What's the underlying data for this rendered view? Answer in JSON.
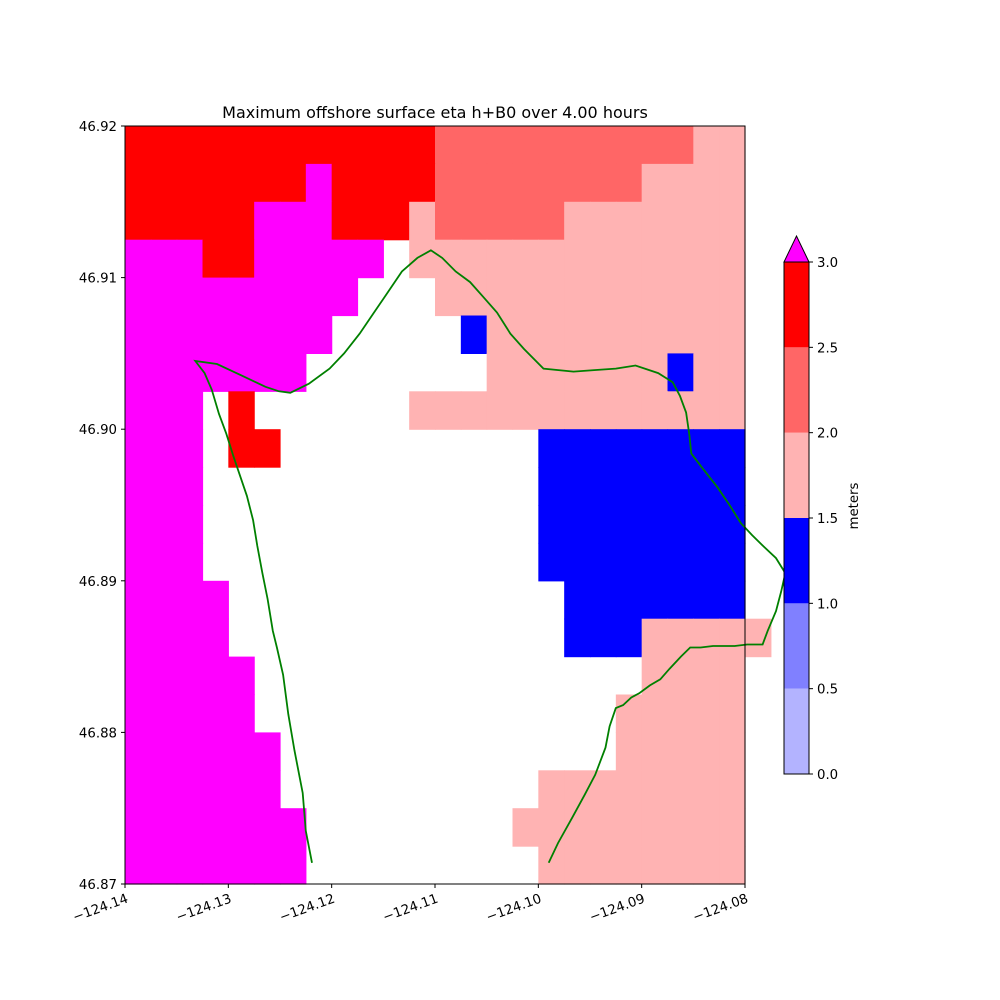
{
  "chart_data": {
    "type": "heatmap",
    "title": "Maximum offshore surface eta h+B0 over 4.00 hours",
    "xlim": [
      -124.14,
      -124.08
    ],
    "ylim": [
      46.87,
      46.92
    ],
    "x_ticks": [
      -124.14,
      -124.13,
      -124.12,
      -124.11,
      -124.1,
      -124.09,
      -124.08
    ],
    "x_tick_labels": [
      "−124.14",
      "−124.13",
      "−124.12",
      "−124.11",
      "−124.10",
      "−124.09",
      "−124.08"
    ],
    "y_ticks": [
      46.87,
      46.88,
      46.89,
      46.9,
      46.91,
      46.92
    ],
    "y_tick_labels": [
      "46.87",
      "46.88",
      "46.89",
      "46.90",
      "46.91",
      "46.92"
    ],
    "grid": false,
    "colorbar": {
      "label": "meters",
      "placement": "right",
      "ticks": [
        0.0,
        0.5,
        1.0,
        1.5,
        2.0,
        2.5,
        3.0
      ],
      "tick_labels": [
        "0.0",
        "0.5",
        "1.0",
        "1.5",
        "2.0",
        "2.5",
        "3.0"
      ],
      "levels": [
        {
          "range": [
            0.0,
            0.5
          ],
          "color": "#b3b3ff"
        },
        {
          "range": [
            0.5,
            1.0
          ],
          "color": "#8080ff"
        },
        {
          "range": [
            1.0,
            1.5
          ],
          "color": "#0000ff"
        },
        {
          "range": [
            1.5,
            2.0
          ],
          "color": "#ffb3b3"
        },
        {
          "range": [
            2.0,
            2.5
          ],
          "color": "#ff6666"
        },
        {
          "range": [
            2.5,
            3.0
          ],
          "color": "#ff0000"
        }
      ],
      "extend_max_color": "#ff00ff"
    },
    "grid_cells": {
      "nx": 24,
      "ny": 20,
      "legend": {
        ".": "no data",
        "0": "0.0-0.5",
        "1": "0.5-1.0",
        "2": "1.0-1.5",
        "3": "1.5-2.0",
        "4": "2.0-2.5",
        "5": "2.5-3.0",
        "M": ">3.0"
      },
      "rows_top_to_bottom": [
        "RRRRRRRRRRRRPPPPPPPPPPLL",
        "RRRRRRRMRRRRPPPPPPPPLLLL",
        "RRRRRMMMRRRLPPPPPLLLLLLL",
        "MMMRRMMMMM.LLLLLLLLLLLLL",
        "MMMMMMMMM...LLLLLLLLLLLL",
        "MMMMMMMM.....BLLLLLLLLLL",
        "MMMMMMM.......LLLLLLLBLL",
        "MMM.R......LLLLLLLLLLLLL",
        "MMM.RR..........BBBBBBBB",
        "MMM.............BBBBBBBB",
        "MMM.............BBBBBBBB",
        "MMM.............BBBBBBBB",
        "MMMM.............BBBBBBB",
        "MMMM.............BBBLLLLL",
        "MMMMM...............LLLL",
        "MMMMM..............LLLLL",
        "MMMMMM.............LLLLL",
        "MMMMMM..........LLLLLLLL",
        "MMMMMMM........LLLLLLLLL",
        "MMMMMMM.........LLLLLLLL"
      ]
    },
    "coastline": {
      "color": "#008000",
      "points": [
        [
          -124.1219,
          46.8714
        ],
        [
          -124.1225,
          46.8735
        ],
        [
          -124.1228,
          46.876
        ],
        [
          -124.1236,
          46.8788
        ],
        [
          -124.1242,
          46.8812
        ],
        [
          -124.1247,
          46.8838
        ],
        [
          -124.1253,
          46.8856
        ],
        [
          -124.1257,
          46.8867
        ],
        [
          -124.1262,
          46.8888
        ],
        [
          -124.1267,
          46.8905
        ],
        [
          -124.1272,
          46.8923
        ],
        [
          -124.1276,
          46.894
        ],
        [
          -124.1282,
          46.8956
        ],
        [
          -124.1288,
          46.8968
        ],
        [
          -124.1295,
          46.8982
        ],
        [
          -124.1302,
          46.8997
        ],
        [
          -124.1309,
          46.901
        ],
        [
          -124.1316,
          46.9026
        ],
        [
          -124.1323,
          46.9037
        ],
        [
          -124.1332,
          46.9045
        ],
        [
          -124.1311,
          46.9043
        ],
        [
          -124.1286,
          46.9035
        ],
        [
          -124.1264,
          46.9028
        ],
        [
          -124.1251,
          46.9025
        ],
        [
          -124.124,
          46.9024
        ],
        [
          -124.1222,
          46.903
        ],
        [
          -124.1202,
          46.904
        ],
        [
          -124.1188,
          46.905
        ],
        [
          -124.1173,
          46.9063
        ],
        [
          -124.116,
          46.9076
        ],
        [
          -124.1146,
          46.909
        ],
        [
          -124.1132,
          46.9104
        ],
        [
          -124.1117,
          46.9113
        ],
        [
          -124.1104,
          46.9118
        ],
        [
          -124.1093,
          46.9113
        ],
        [
          -124.108,
          46.9104
        ],
        [
          -124.1066,
          46.9097
        ],
        [
          -124.1053,
          46.9087
        ],
        [
          -124.104,
          46.9077
        ],
        [
          -124.1027,
          46.9063
        ],
        [
          -124.1014,
          46.9053
        ],
        [
          -124.0995,
          46.904
        ],
        [
          -124.0966,
          46.9038
        ],
        [
          -124.0946,
          46.9039
        ],
        [
          -124.0925,
          46.904
        ],
        [
          -124.0906,
          46.9042
        ],
        [
          -124.0884,
          46.9037
        ],
        [
          -124.087,
          46.9031
        ],
        [
          -124.0863,
          46.9022
        ],
        [
          -124.0857,
          46.9011
        ],
        [
          -124.0854,
          46.8997
        ],
        [
          -124.0852,
          46.8984
        ],
        [
          -124.0842,
          46.8975
        ],
        [
          -124.0827,
          46.8962
        ],
        [
          -124.0815,
          46.895
        ],
        [
          -124.0804,
          46.8938
        ],
        [
          -124.0793,
          46.893
        ],
        [
          -124.0781,
          46.8922
        ],
        [
          -124.077,
          46.8915
        ],
        [
          -124.0761,
          46.8905
        ],
        [
          -124.0765,
          46.8893
        ],
        [
          -124.077,
          46.888
        ],
        [
          -124.0778,
          46.8867
        ],
        [
          -124.0783,
          46.8858
        ],
        [
          -124.079,
          46.8858
        ],
        [
          -124.0798,
          46.8858
        ],
        [
          -124.081,
          46.8857
        ],
        [
          -124.082,
          46.8857
        ],
        [
          -124.0831,
          46.8857
        ],
        [
          -124.0843,
          46.8856
        ],
        [
          -124.0853,
          46.8856
        ],
        [
          -124.0862,
          46.885
        ],
        [
          -124.0873,
          46.8842
        ],
        [
          -124.0882,
          46.8835
        ],
        [
          -124.0892,
          46.8831
        ],
        [
          -124.0902,
          46.8826
        ],
        [
          -124.091,
          46.8823
        ],
        [
          -124.0918,
          46.8818
        ],
        [
          -124.0925,
          46.8816
        ],
        [
          -124.0931,
          46.8804
        ],
        [
          -124.0935,
          46.879
        ],
        [
          -124.0945,
          46.8772
        ],
        [
          -124.0955,
          46.8759
        ],
        [
          -124.0967,
          46.8744
        ],
        [
          -124.0981,
          46.8727
        ],
        [
          -124.099,
          46.8714
        ]
      ]
    }
  }
}
